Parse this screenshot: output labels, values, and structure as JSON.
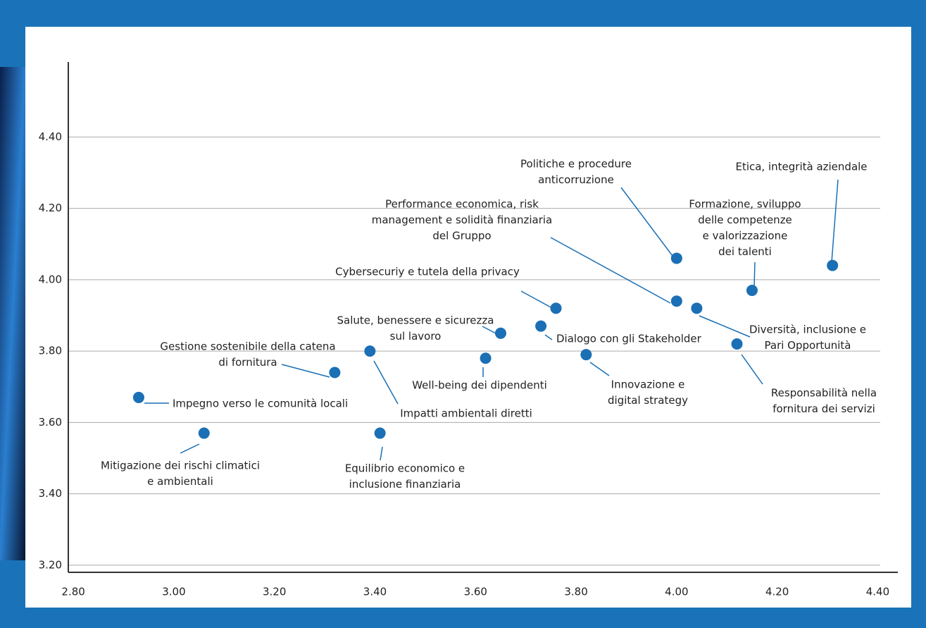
{
  "chart_data": {
    "type": "scatter",
    "color": "#1a6fb5",
    "x": [
      4.31,
      4.0,
      4.15,
      4.0,
      4.04,
      3.76,
      3.73,
      3.65,
      3.62,
      3.82,
      4.12,
      3.39,
      3.32,
      2.93,
      3.06,
      3.41
    ],
    "y": [
      4.04,
      4.06,
      3.97,
      3.94,
      3.92,
      3.92,
      3.87,
      3.85,
      3.78,
      3.79,
      3.82,
      3.8,
      3.74,
      3.67,
      3.57,
      3.57
    ],
    "labels": [
      [
        "Etica, integrità aziendale"
      ],
      [
        "Politiche e procedure",
        "anticorruzione"
      ],
      [
        "Formazione, sviluppo",
        "delle competenze",
        "e valorizzazione",
        "dei talenti"
      ],
      [
        "Performance economica, risk",
        "management e solidità finanziaria",
        "del Gruppo"
      ],
      [
        "Diversità, inclusione e",
        "Pari Opportunità"
      ],
      [
        "Cybersecuriy e tutela della privacy"
      ],
      [
        "Dialogo con gli Stakeholder"
      ],
      [
        "Salute, benessere e sicurezza",
        "sul lavoro"
      ],
      [
        "Well-being dei dipendenti"
      ],
      [
        "Innovazione e",
        "digital strategy"
      ],
      [
        "Responsabilità nella",
        "fornitura dei servizi"
      ],
      [
        "Impatti ambientali diretti"
      ],
      [
        "Gestione sostenibile della catena",
        "di fornitura"
      ],
      [
        "Impegno verso le comunità locali"
      ],
      [
        "Mitigazione dei rischi climatici",
        "e ambientali"
      ],
      [
        "Equilibrio economico e",
        "inclusione finanziaria"
      ]
    ],
    "xlim": [
      2.79,
      4.44
    ],
    "ylim": [
      3.18,
      4.61
    ],
    "xticks": [
      {
        "value": 2.8,
        "label": "2.80"
      },
      {
        "value": 3.0,
        "label": "3.00"
      },
      {
        "value": 3.2,
        "label": "3.20"
      },
      {
        "value": 3.4,
        "label": "3.40"
      },
      {
        "value": 3.6,
        "label": "3.60"
      },
      {
        "value": 3.8,
        "label": "3.80"
      },
      {
        "value": 4.0,
        "label": "4.00"
      },
      {
        "value": 4.2,
        "label": "4.20"
      },
      {
        "value": 4.4,
        "label": "4.40"
      }
    ],
    "yticks": [
      {
        "value": 3.2,
        "label": "3.20"
      },
      {
        "value": 3.4,
        "label": "3.40"
      },
      {
        "value": 3.6,
        "label": "3.60"
      },
      {
        "value": 3.8,
        "label": "3.80"
      },
      {
        "value": 4.0,
        "label": "4.00"
      },
      {
        "value": 4.2,
        "label": "4.20"
      },
      {
        "value": 4.4,
        "label": "4.40"
      }
    ],
    "grid": true
  }
}
